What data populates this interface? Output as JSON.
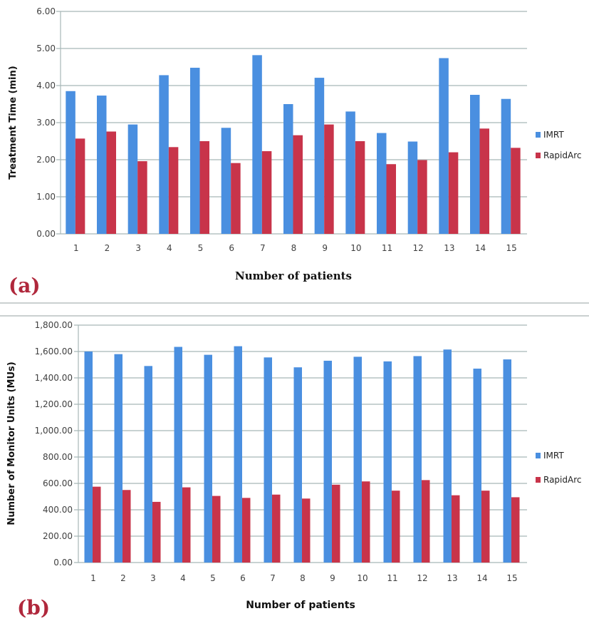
{
  "colors": {
    "imrt": "#4a8fe0",
    "rapidarc": "#c8344a",
    "grid": "#a8b8b8",
    "panel_label": "#b0283c"
  },
  "chart_data": [
    {
      "panel": "(a)",
      "type": "bar",
      "title": "",
      "xlabel": "Number of patients",
      "ylabel": "Treatment Time (min)",
      "ylim": [
        0,
        6
      ],
      "yticks": [
        "0.00",
        "1.00",
        "2.00",
        "3.00",
        "4.00",
        "5.00",
        "6.00"
      ],
      "ytick_values": [
        0,
        1,
        2,
        3,
        4,
        5,
        6
      ],
      "grid": true,
      "legend": "right",
      "categories": [
        "1",
        "2",
        "3",
        "4",
        "5",
        "6",
        "7",
        "8",
        "9",
        "10",
        "11",
        "12",
        "13",
        "14",
        "15"
      ],
      "series": [
        {
          "name": "IMRT",
          "values": [
            3.85,
            3.73,
            2.95,
            4.28,
            4.48,
            2.86,
            4.82,
            3.5,
            4.21,
            3.3,
            2.72,
            2.49,
            4.74,
            3.75,
            3.64
          ]
        },
        {
          "name": "RapidArc",
          "values": [
            2.57,
            2.76,
            1.96,
            2.34,
            2.5,
            1.91,
            2.23,
            2.66,
            2.95,
            2.5,
            1.88,
            1.99,
            2.2,
            2.84,
            2.32
          ]
        }
      ]
    },
    {
      "panel": "(b)",
      "type": "bar",
      "title": "",
      "xlabel": "Number of patients",
      "ylabel": "Number of Monitor Units (MUs)",
      "ylim": [
        0,
        1800
      ],
      "yticks": [
        "0.00",
        "200.00",
        "400.00",
        "600.00",
        "800.00",
        "1,000.00",
        "1,200.00",
        "1,400.00",
        "1,600.00",
        "1,800.00"
      ],
      "ytick_values": [
        0,
        200,
        400,
        600,
        800,
        1000,
        1200,
        1400,
        1600,
        1800
      ],
      "grid": true,
      "legend": "right",
      "categories": [
        "1",
        "2",
        "3",
        "4",
        "5",
        "6",
        "7",
        "8",
        "9",
        "10",
        "11",
        "12",
        "13",
        "14",
        "15"
      ],
      "series": [
        {
          "name": "IMRT",
          "values": [
            1600,
            1580,
            1490,
            1635,
            1575,
            1640,
            1555,
            1480,
            1530,
            1560,
            1525,
            1565,
            1615,
            1470,
            1540
          ]
        },
        {
          "name": "RapidArc",
          "values": [
            575,
            550,
            460,
            570,
            505,
            490,
            515,
            485,
            590,
            615,
            545,
            625,
            510,
            545,
            495
          ]
        }
      ]
    }
  ]
}
